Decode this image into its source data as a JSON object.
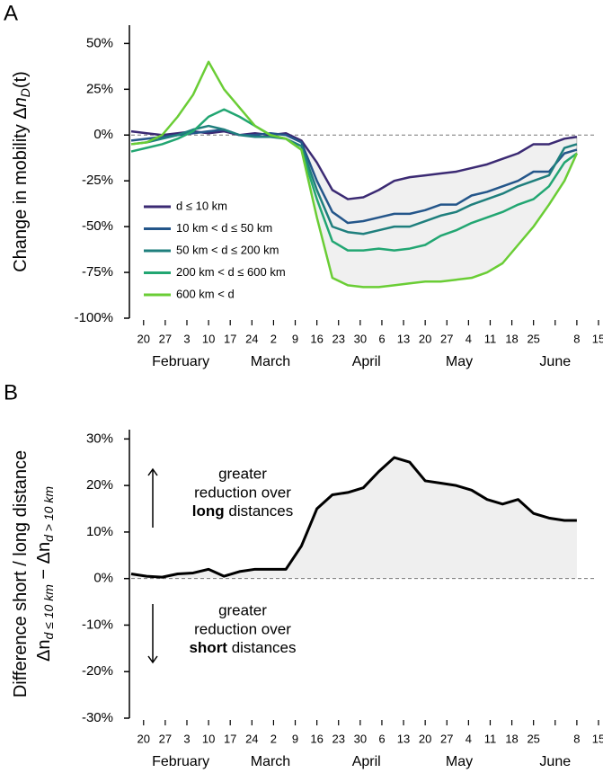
{
  "chart_data": [
    {
      "type": "line",
      "panel": "A",
      "ylabel": [
        "Change in mobility Δ",
        "n",
        "D",
        "(t)"
      ],
      "x": [
        "01-16",
        "01-21",
        "01-26",
        "01-31",
        "02-05",
        "02-10",
        "02-15",
        "02-20",
        "02-25",
        "03-01",
        "03-06",
        "03-11",
        "03-16",
        "03-21",
        "03-26",
        "03-31",
        "04-05",
        "04-10",
        "04-15",
        "04-20",
        "04-25",
        "04-30",
        "05-05",
        "05-10",
        "05-15",
        "05-20",
        "05-25",
        "05-30",
        "06-04",
        "06-08"
      ],
      "series": [
        {
          "name": "d ≤ 10 km",
          "color": "#3b2a73",
          "values": [
            2,
            1,
            0,
            1,
            2,
            1,
            2,
            0,
            1,
            0,
            1,
            -3,
            -15,
            -30,
            -35,
            -34,
            -30,
            -25,
            -23,
            -22,
            -21,
            -20,
            -18,
            -16,
            -13,
            -10,
            -5,
            -5,
            -2,
            -1
          ]
        },
        {
          "name": "10 km < d ≤ 50 km",
          "color": "#24568a",
          "values": [
            -3,
            -2,
            -1,
            0,
            1,
            2,
            3,
            0,
            0,
            1,
            0,
            -4,
            -25,
            -42,
            -48,
            -47,
            -45,
            -43,
            -43,
            -41,
            -38,
            -38,
            -33,
            -31,
            -28,
            -25,
            -20,
            -20,
            -10,
            -8
          ]
        },
        {
          "name": "50 km < d ≤ 200 km",
          "color": "#1f7f7d",
          "values": [
            -5,
            -4,
            -2,
            0,
            3,
            5,
            3,
            0,
            -1,
            -1,
            -2,
            -6,
            -30,
            -50,
            -53,
            -54,
            -52,
            -50,
            -50,
            -47,
            -44,
            -42,
            -38,
            -35,
            -32,
            -28,
            -25,
            -22,
            -7,
            -5
          ]
        },
        {
          "name": "200 km < d ≤ 600 km",
          "color": "#22a672",
          "values": [
            -9,
            -7,
            -5,
            -2,
            2,
            10,
            14,
            10,
            5,
            0,
            -2,
            -8,
            -35,
            -58,
            -63,
            -63,
            -62,
            -63,
            -62,
            -60,
            -55,
            -52,
            -48,
            -45,
            -42,
            -38,
            -35,
            -28,
            -15,
            -10
          ]
        },
        {
          "name": "600 km < d",
          "color": "#6acd35",
          "values": [
            -5,
            -4,
            0,
            10,
            22,
            40,
            25,
            15,
            5,
            0,
            -2,
            -8,
            -45,
            -78,
            -82,
            -83,
            -83,
            -82,
            -81,
            -80,
            -80,
            -79,
            -78,
            -75,
            -70,
            -60,
            -50,
            -38,
            -25,
            -10
          ]
        }
      ],
      "shade_from": "03-11",
      "hline": 0,
      "ylim": [
        -100,
        60
      ],
      "yticks": [
        {
          "value": -100,
          "label": "-100%"
        },
        {
          "value": -75,
          "label": "-75%"
        },
        {
          "value": -50,
          "label": "-50%"
        },
        {
          "value": -25,
          "label": "-25%"
        },
        {
          "value": 0,
          "label": "0%"
        },
        {
          "value": 25,
          "label": "25%"
        },
        {
          "value": 50,
          "label": "50%"
        }
      ],
      "xlim": [
        "01-16",
        "06-15"
      ],
      "xticks": [
        {
          "value": "01-20",
          "label": "20"
        },
        {
          "value": "01-27",
          "label": "27"
        },
        {
          "value": "02-03",
          "label": "3"
        },
        {
          "value": "02-10",
          "label": "10"
        },
        {
          "value": "02-17",
          "label": "17"
        },
        {
          "value": "02-24",
          "label": "24"
        },
        {
          "value": "03-02",
          "label": "2"
        },
        {
          "value": "03-09",
          "label": "9"
        },
        {
          "value": "03-16",
          "label": "16"
        },
        {
          "value": "03-23",
          "label": "23"
        },
        {
          "value": "03-30",
          "label": "30"
        },
        {
          "value": "04-06",
          "label": "6"
        },
        {
          "value": "04-13",
          "label": "13"
        },
        {
          "value": "04-20",
          "label": "20"
        },
        {
          "value": "04-27",
          "label": "27"
        },
        {
          "value": "05-04",
          "label": "4"
        },
        {
          "value": "05-11",
          "label": "11"
        },
        {
          "value": "05-18",
          "label": "18"
        },
        {
          "value": "05-25",
          "label": "25"
        },
        {
          "value": "06-01",
          "label": ""
        },
        {
          "value": "06-08",
          "label": "8"
        },
        {
          "value": "06-15",
          "label": "15"
        }
      ],
      "xmonths": [
        {
          "value": "02-01",
          "label": "February"
        },
        {
          "value": "03-01",
          "label": "March"
        },
        {
          "value": "04-01",
          "label": "April"
        },
        {
          "value": "05-01",
          "label": "May"
        },
        {
          "value": "06-01",
          "label": "June"
        }
      ],
      "legend": "lower left"
    },
    {
      "type": "area",
      "panel": "B",
      "ylabel": [
        "Difference short / long distance"
      ],
      "ylabel2": [
        "Δn",
        "d ≤ 10 km",
        " − Δn",
        "d > 10 km"
      ],
      "x": [
        "01-16",
        "01-21",
        "01-26",
        "01-31",
        "02-05",
        "02-10",
        "02-15",
        "02-20",
        "02-25",
        "03-01",
        "03-06",
        "03-11",
        "03-16",
        "03-21",
        "03-26",
        "03-31",
        "04-05",
        "04-10",
        "04-15",
        "04-20",
        "04-25",
        "04-30",
        "05-05",
        "05-10",
        "05-15",
        "05-20",
        "05-25",
        "05-30",
        "06-04",
        "06-08"
      ],
      "series": [
        {
          "color": "#000000",
          "values": [
            1,
            0.5,
            0.3,
            1,
            1.2,
            2,
            0.5,
            1.5,
            2,
            2,
            2,
            7,
            15,
            18,
            18.5,
            19.5,
            23,
            26,
            25,
            21,
            20.5,
            20,
            19,
            17,
            16,
            17,
            14,
            13,
            12.5,
            12.5
          ]
        }
      ],
      "hline": 0,
      "annotations": [
        {
          "lines": [
            "greater",
            "reduction over"
          ],
          "bold": "long",
          "rest": " distances",
          "arrow": "up"
        },
        {
          "lines": [
            "greater",
            "reduction over"
          ],
          "bold": "short",
          "rest": " distances",
          "arrow": "down"
        }
      ],
      "ylim": [
        -30,
        32
      ],
      "yticks": [
        {
          "value": -30,
          "label": "-30%"
        },
        {
          "value": -20,
          "label": "-20%"
        },
        {
          "value": -10,
          "label": "-10%"
        },
        {
          "value": 0,
          "label": "0%"
        },
        {
          "value": 10,
          "label": "10%"
        },
        {
          "value": 20,
          "label": "20%"
        },
        {
          "value": 30,
          "label": "30%"
        }
      ],
      "xlim": [
        "01-16",
        "06-15"
      ],
      "xticks": [
        {
          "value": "01-20",
          "label": "20"
        },
        {
          "value": "01-27",
          "label": "27"
        },
        {
          "value": "02-03",
          "label": "3"
        },
        {
          "value": "02-10",
          "label": "10"
        },
        {
          "value": "02-17",
          "label": "17"
        },
        {
          "value": "02-24",
          "label": "24"
        },
        {
          "value": "03-02",
          "label": "2"
        },
        {
          "value": "03-09",
          "label": "9"
        },
        {
          "value": "03-16",
          "label": "16"
        },
        {
          "value": "03-23",
          "label": "23"
        },
        {
          "value": "03-30",
          "label": "30"
        },
        {
          "value": "04-06",
          "label": "6"
        },
        {
          "value": "04-13",
          "label": "13"
        },
        {
          "value": "04-20",
          "label": "20"
        },
        {
          "value": "04-27",
          "label": "27"
        },
        {
          "value": "05-04",
          "label": "4"
        },
        {
          "value": "05-11",
          "label": "11"
        },
        {
          "value": "05-18",
          "label": "18"
        },
        {
          "value": "05-25",
          "label": "25"
        },
        {
          "value": "06-01",
          "label": ""
        },
        {
          "value": "06-08",
          "label": "8"
        },
        {
          "value": "06-15",
          "label": "15"
        }
      ],
      "xmonths": [
        {
          "value": "02-01",
          "label": "February"
        },
        {
          "value": "03-01",
          "label": "March"
        },
        {
          "value": "04-01",
          "label": "April"
        },
        {
          "value": "05-01",
          "label": "May"
        },
        {
          "value": "06-01",
          "label": "June"
        }
      ]
    }
  ]
}
